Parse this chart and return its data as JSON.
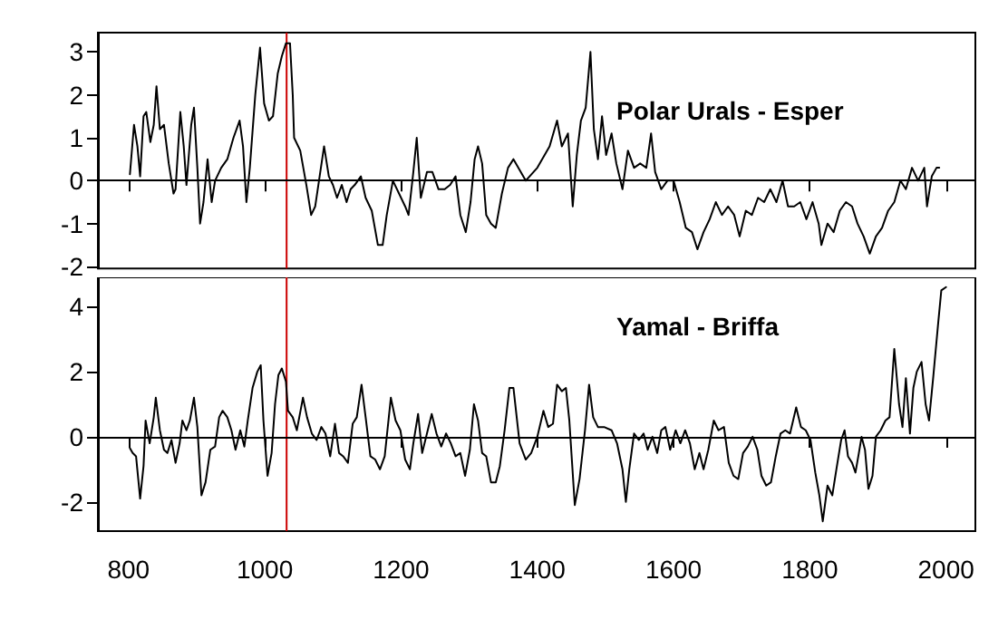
{
  "chart_data": [
    {
      "type": "line",
      "annotations": [
        "Polar Urals - Esper"
      ],
      "xlim": [
        755,
        2043
      ],
      "xticks": [
        800,
        1000,
        1200,
        1400,
        1600,
        1800,
        2000
      ],
      "ylim": [
        -2.05,
        3.45
      ],
      "yticks": [
        -2,
        -1,
        0,
        1,
        2,
        3
      ],
      "tick_labels": "y",
      "grid": false,
      "marker": "none",
      "line_style": "solid",
      "series": [
        {
          "color": "#000000",
          "x": [
            802,
            808,
            813,
            817,
            822,
            826,
            832,
            837,
            841,
            846,
            852,
            859,
            866,
            869,
            876,
            881,
            885,
            892,
            896,
            901,
            905,
            910,
            916,
            922,
            927,
            936,
            945,
            954,
            963,
            968,
            973,
            978,
            986,
            993,
            999,
            1006,
            1012,
            1019,
            1025,
            1031,
            1037,
            1041,
            1043,
            1052,
            1061,
            1068,
            1074,
            1087,
            1094,
            1100,
            1106,
            1113,
            1120,
            1126,
            1132,
            1141,
            1148,
            1157,
            1166,
            1173,
            1179,
            1188,
            1197,
            1206,
            1211,
            1218,
            1223,
            1229,
            1238,
            1246,
            1255,
            1264,
            1272,
            1280,
            1287,
            1295,
            1302,
            1308,
            1313,
            1319,
            1325,
            1332,
            1339,
            1348,
            1357,
            1365,
            1383,
            1400,
            1418,
            1429,
            1436,
            1445,
            1452,
            1458,
            1464,
            1471,
            1478,
            1483,
            1489,
            1495,
            1501,
            1509,
            1516,
            1525,
            1533,
            1542,
            1551,
            1560,
            1567,
            1573,
            1582,
            1591,
            1600,
            1609,
            1618,
            1627,
            1635,
            1644,
            1653,
            1662,
            1671,
            1680,
            1689,
            1697,
            1706,
            1715,
            1724,
            1733,
            1742,
            1751,
            1760,
            1768,
            1777,
            1786,
            1795,
            1804,
            1813,
            1817,
            1826,
            1835,
            1844,
            1853,
            1862,
            1870,
            1879,
            1888,
            1897,
            1906,
            1915,
            1924,
            1933,
            1941,
            1950,
            1959,
            1968,
            1972,
            1979,
            1986,
            1990
          ],
          "values": [
            0.15,
            1.3,
            0.8,
            0.1,
            1.5,
            1.6,
            0.9,
            1.3,
            2.2,
            1.2,
            1.3,
            0.4,
            -0.3,
            -0.2,
            1.6,
            0.8,
            -0.1,
            1.3,
            1.7,
            0.3,
            -1.0,
            -0.5,
            0.5,
            -0.5,
            0.0,
            0.3,
            0.5,
            1.0,
            1.4,
            0.8,
            -0.5,
            0.3,
            2.0,
            3.1,
            1.8,
            1.4,
            1.5,
            2.5,
            2.9,
            3.2,
            3.2,
            2.0,
            1.0,
            0.7,
            -0.1,
            -0.8,
            -0.6,
            0.8,
            0.1,
            -0.1,
            -0.4,
            -0.1,
            -0.5,
            -0.2,
            -0.1,
            0.1,
            -0.4,
            -0.7,
            -1.5,
            -1.5,
            -0.8,
            0.0,
            -0.3,
            -0.6,
            -0.8,
            0.2,
            1.0,
            -0.4,
            0.2,
            0.2,
            -0.2,
            -0.2,
            -0.1,
            0.1,
            -0.8,
            -1.2,
            -0.5,
            0.5,
            0.8,
            0.4,
            -0.8,
            -1.0,
            -1.1,
            -0.3,
            0.3,
            0.5,
            0.0,
            0.3,
            0.8,
            1.4,
            0.8,
            1.1,
            -0.6,
            0.6,
            1.4,
            1.7,
            3.0,
            1.2,
            0.5,
            1.5,
            0.6,
            1.1,
            0.4,
            -0.2,
            0.7,
            0.3,
            0.4,
            0.3,
            1.1,
            0.2,
            -0.2,
            0.0,
            0.0,
            -0.5,
            -1.1,
            -1.2,
            -1.6,
            -1.2,
            -0.9,
            -0.5,
            -0.8,
            -0.6,
            -0.8,
            -1.3,
            -0.7,
            -0.8,
            -0.4,
            -0.5,
            -0.2,
            -0.5,
            0.0,
            -0.6,
            -0.6,
            -0.5,
            -0.9,
            -0.5,
            -1.0,
            -1.5,
            -1.0,
            -1.2,
            -0.7,
            -0.5,
            -0.6,
            -1.0,
            -1.3,
            -1.7,
            -1.3,
            -1.1,
            -0.7,
            -0.5,
            0.0,
            -0.2,
            0.3,
            0.0,
            0.3,
            -0.6,
            0.1,
            0.3,
            0.3
          ]
        }
      ],
      "ref_lines": [
        {
          "axis": "y",
          "value": 0,
          "color": "#000000"
        },
        {
          "axis": "x",
          "value": 1032,
          "color": "#cc0000"
        }
      ]
    },
    {
      "type": "line",
      "annotations": [
        "Yamal - Briffa"
      ],
      "xlim": [
        755,
        2043
      ],
      "xticks": [
        800,
        1000,
        1200,
        1400,
        1600,
        1800,
        2000
      ],
      "ylim": [
        -2.9,
        4.9
      ],
      "yticks": [
        -2,
        0,
        2,
        4
      ],
      "grid": false,
      "marker": "none",
      "line_style": "solid",
      "series": [
        {
          "color": "#000000",
          "x": [
            802,
            806,
            811,
            817,
            822,
            825,
            831,
            837,
            840,
            846,
            852,
            857,
            863,
            869,
            875,
            879,
            885,
            890,
            896,
            901,
            907,
            913,
            920,
            927,
            933,
            938,
            945,
            951,
            957,
            964,
            970,
            975,
            982,
            989,
            994,
            998,
            1004,
            1010,
            1015,
            1020,
            1025,
            1031,
            1034,
            1041,
            1047,
            1056,
            1062,
            1069,
            1076,
            1083,
            1089,
            1096,
            1103,
            1109,
            1115,
            1122,
            1129,
            1135,
            1142,
            1148,
            1155,
            1162,
            1169,
            1176,
            1185,
            1192,
            1199,
            1206,
            1213,
            1218,
            1225,
            1231,
            1238,
            1245,
            1252,
            1259,
            1266,
            1273,
            1280,
            1287,
            1294,
            1301,
            1307,
            1313,
            1319,
            1325,
            1332,
            1339,
            1345,
            1352,
            1359,
            1365,
            1374,
            1383,
            1391,
            1400,
            1409,
            1416,
            1423,
            1429,
            1436,
            1442,
            1447,
            1455,
            1462,
            1470,
            1476,
            1482,
            1489,
            1498,
            1509,
            1517,
            1525,
            1530,
            1535,
            1542,
            1549,
            1556,
            1562,
            1569,
            1576,
            1582,
            1588,
            1595,
            1603,
            1610,
            1617,
            1624,
            1631,
            1638,
            1644,
            1651,
            1659,
            1666,
            1674,
            1681,
            1688,
            1695,
            1702,
            1709,
            1716,
            1723,
            1729,
            1736,
            1743,
            1750,
            1757,
            1764,
            1771,
            1780,
            1787,
            1794,
            1801,
            1808,
            1814,
            1819,
            1826,
            1833,
            1839,
            1846,
            1851,
            1856,
            1862,
            1867,
            1872,
            1876,
            1881,
            1886,
            1892,
            1897,
            1904,
            1911,
            1917,
            1924,
            1931,
            1936,
            1941,
            1947,
            1952,
            1957,
            1964,
            1970,
            1975,
            1981,
            1988,
            1993,
            2000
          ],
          "values": [
            -0.35,
            -0.5,
            -0.6,
            -1.9,
            -0.9,
            0.5,
            -0.2,
            0.6,
            1.2,
            0.2,
            -0.4,
            -0.5,
            -0.1,
            -0.8,
            -0.2,
            0.5,
            0.2,
            0.5,
            1.2,
            0.3,
            -1.8,
            -1.4,
            -0.4,
            -0.3,
            0.6,
            0.8,
            0.6,
            0.2,
            -0.4,
            0.2,
            -0.3,
            0.5,
            1.5,
            2.0,
            2.2,
            0.5,
            -1.2,
            -0.5,
            1.0,
            1.9,
            2.1,
            1.7,
            0.8,
            0.6,
            0.2,
            1.2,
            0.6,
            0.1,
            -0.1,
            0.3,
            0.1,
            -0.6,
            0.4,
            -0.5,
            -0.6,
            -0.8,
            0.4,
            0.6,
            1.6,
            0.6,
            -0.6,
            -0.7,
            -1.0,
            -0.6,
            1.2,
            0.5,
            0.2,
            -0.7,
            -1.0,
            -0.2,
            0.7,
            -0.5,
            0.1,
            0.7,
            0.1,
            -0.3,
            0.1,
            -0.2,
            -0.6,
            -0.5,
            -1.2,
            -0.4,
            1.0,
            0.5,
            -0.5,
            -0.6,
            -1.4,
            -1.4,
            -0.9,
            0.2,
            1.5,
            1.5,
            -0.2,
            -0.7,
            -0.5,
            0.0,
            0.8,
            0.3,
            0.4,
            1.6,
            1.4,
            1.5,
            0.5,
            -2.1,
            -1.3,
            0.2,
            1.6,
            0.6,
            0.3,
            0.3,
            0.2,
            -0.2,
            -1.0,
            -2.0,
            -1.0,
            0.1,
            -0.1,
            0.1,
            -0.4,
            0.0,
            -0.5,
            0.2,
            0.3,
            -0.4,
            0.2,
            -0.2,
            0.2,
            -0.2,
            -1.0,
            -0.5,
            -1.0,
            -0.4,
            0.5,
            0.2,
            0.3,
            -0.8,
            -1.2,
            -1.3,
            -0.5,
            -0.3,
            0.0,
            -0.4,
            -1.2,
            -1.5,
            -1.4,
            -0.6,
            0.1,
            0.2,
            0.1,
            0.9,
            0.3,
            0.2,
            -0.1,
            -1.1,
            -1.8,
            -2.6,
            -1.5,
            -1.8,
            -1.0,
            -0.1,
            0.2,
            -0.6,
            -0.8,
            -1.1,
            -0.5,
            0.0,
            -0.4,
            -1.6,
            -1.2,
            0.0,
            0.2,
            0.5,
            0.6,
            2.7,
            1.0,
            0.3,
            1.8,
            0.1,
            1.5,
            2.0,
            2.3,
            1.0,
            0.5,
            1.8,
            3.4,
            4.5,
            4.6
          ]
        }
      ],
      "ref_lines": [
        {
          "axis": "y",
          "value": 0,
          "color": "#000000"
        },
        {
          "axis": "x",
          "value": 1032,
          "color": "#cc0000"
        }
      ]
    }
  ]
}
